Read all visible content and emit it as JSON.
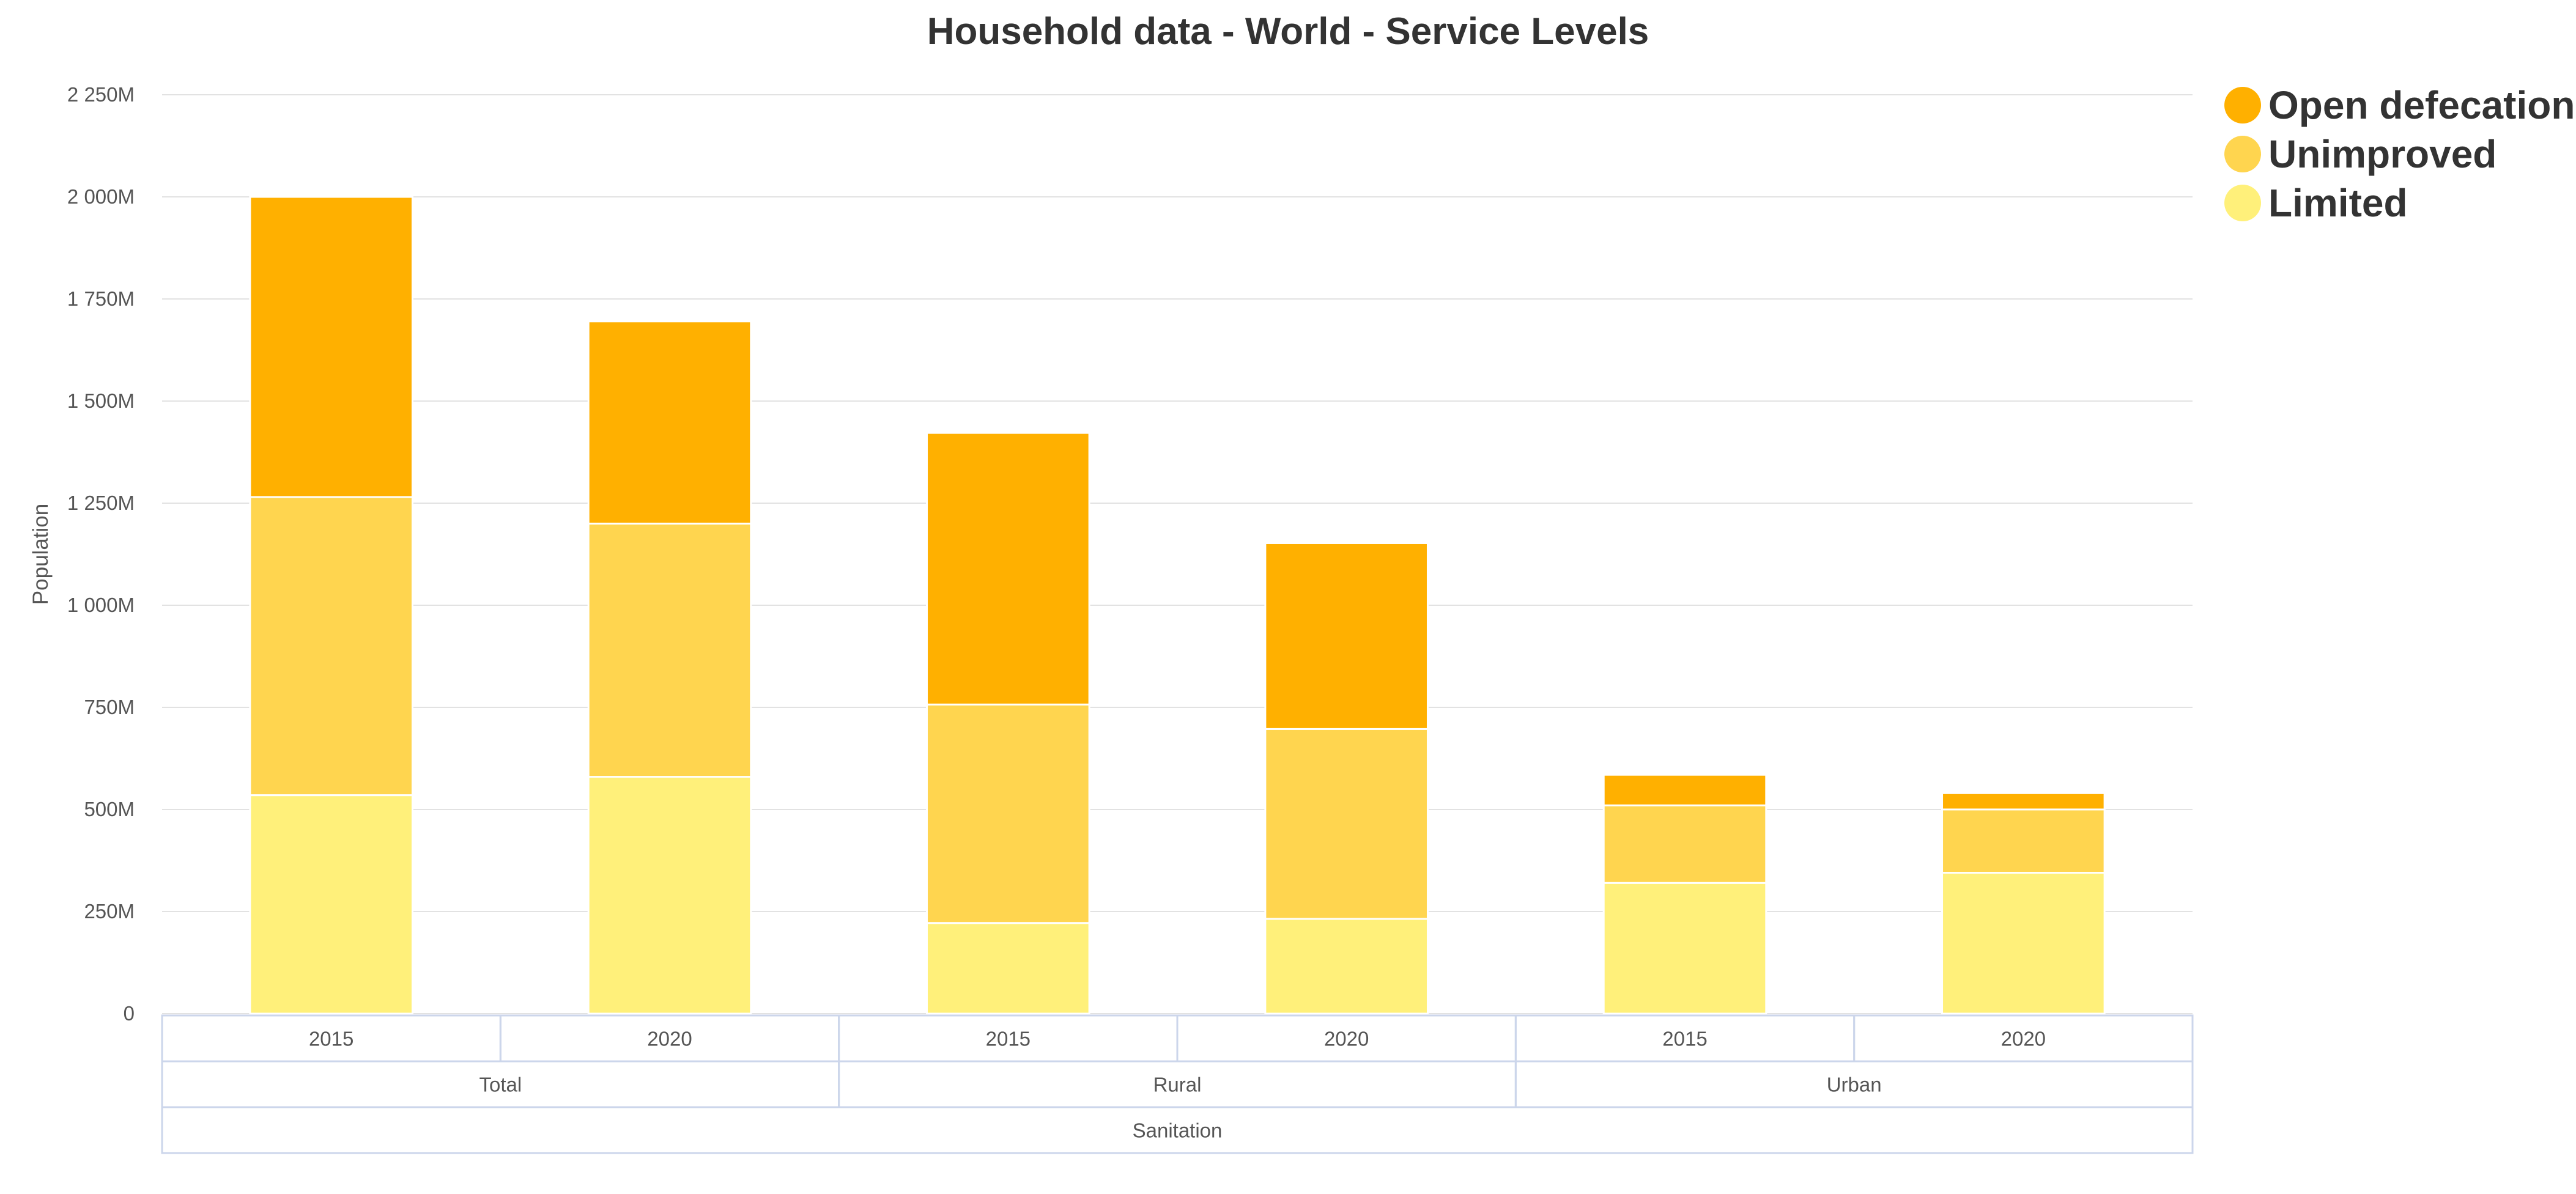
{
  "chart_data": {
    "type": "bar",
    "stacked": true,
    "title": "Household data - World - Service Levels",
    "ylabel": "Population",
    "ylim": [
      0,
      2250
    ],
    "y_unit": "M",
    "yticks": [
      0,
      250,
      500,
      750,
      1000,
      1250,
      1500,
      1750,
      2000,
      2250
    ],
    "ytick_labels": [
      "0",
      "250M",
      "500M",
      "750M",
      "1 000M",
      "1 250M",
      "1 500M",
      "1 750M",
      "2 000M",
      "2 250M"
    ],
    "categories": [
      "2015",
      "2020",
      "2015",
      "2020",
      "2015",
      "2020"
    ],
    "category_groups": [
      {
        "label": "Total",
        "span": 2
      },
      {
        "label": "Rural",
        "span": 2
      },
      {
        "label": "Urban",
        "span": 2
      }
    ],
    "category_super_group": "Sanitation",
    "series": [
      {
        "name": "Limited",
        "color": "#fff07a",
        "values": [
          535,
          580,
          222,
          232,
          320,
          345
        ]
      },
      {
        "name": "Unimproved",
        "color": "#ffd54f",
        "values": [
          730,
          620,
          535,
          465,
          190,
          155
        ]
      },
      {
        "name": "Open defecation",
        "color": "#ffb000",
        "values": [
          735,
          495,
          665,
          455,
          75,
          40
        ]
      }
    ],
    "legend": {
      "position": "top-right",
      "order": [
        "Open defecation",
        "Unimproved",
        "Limited"
      ]
    },
    "grid": true
  }
}
